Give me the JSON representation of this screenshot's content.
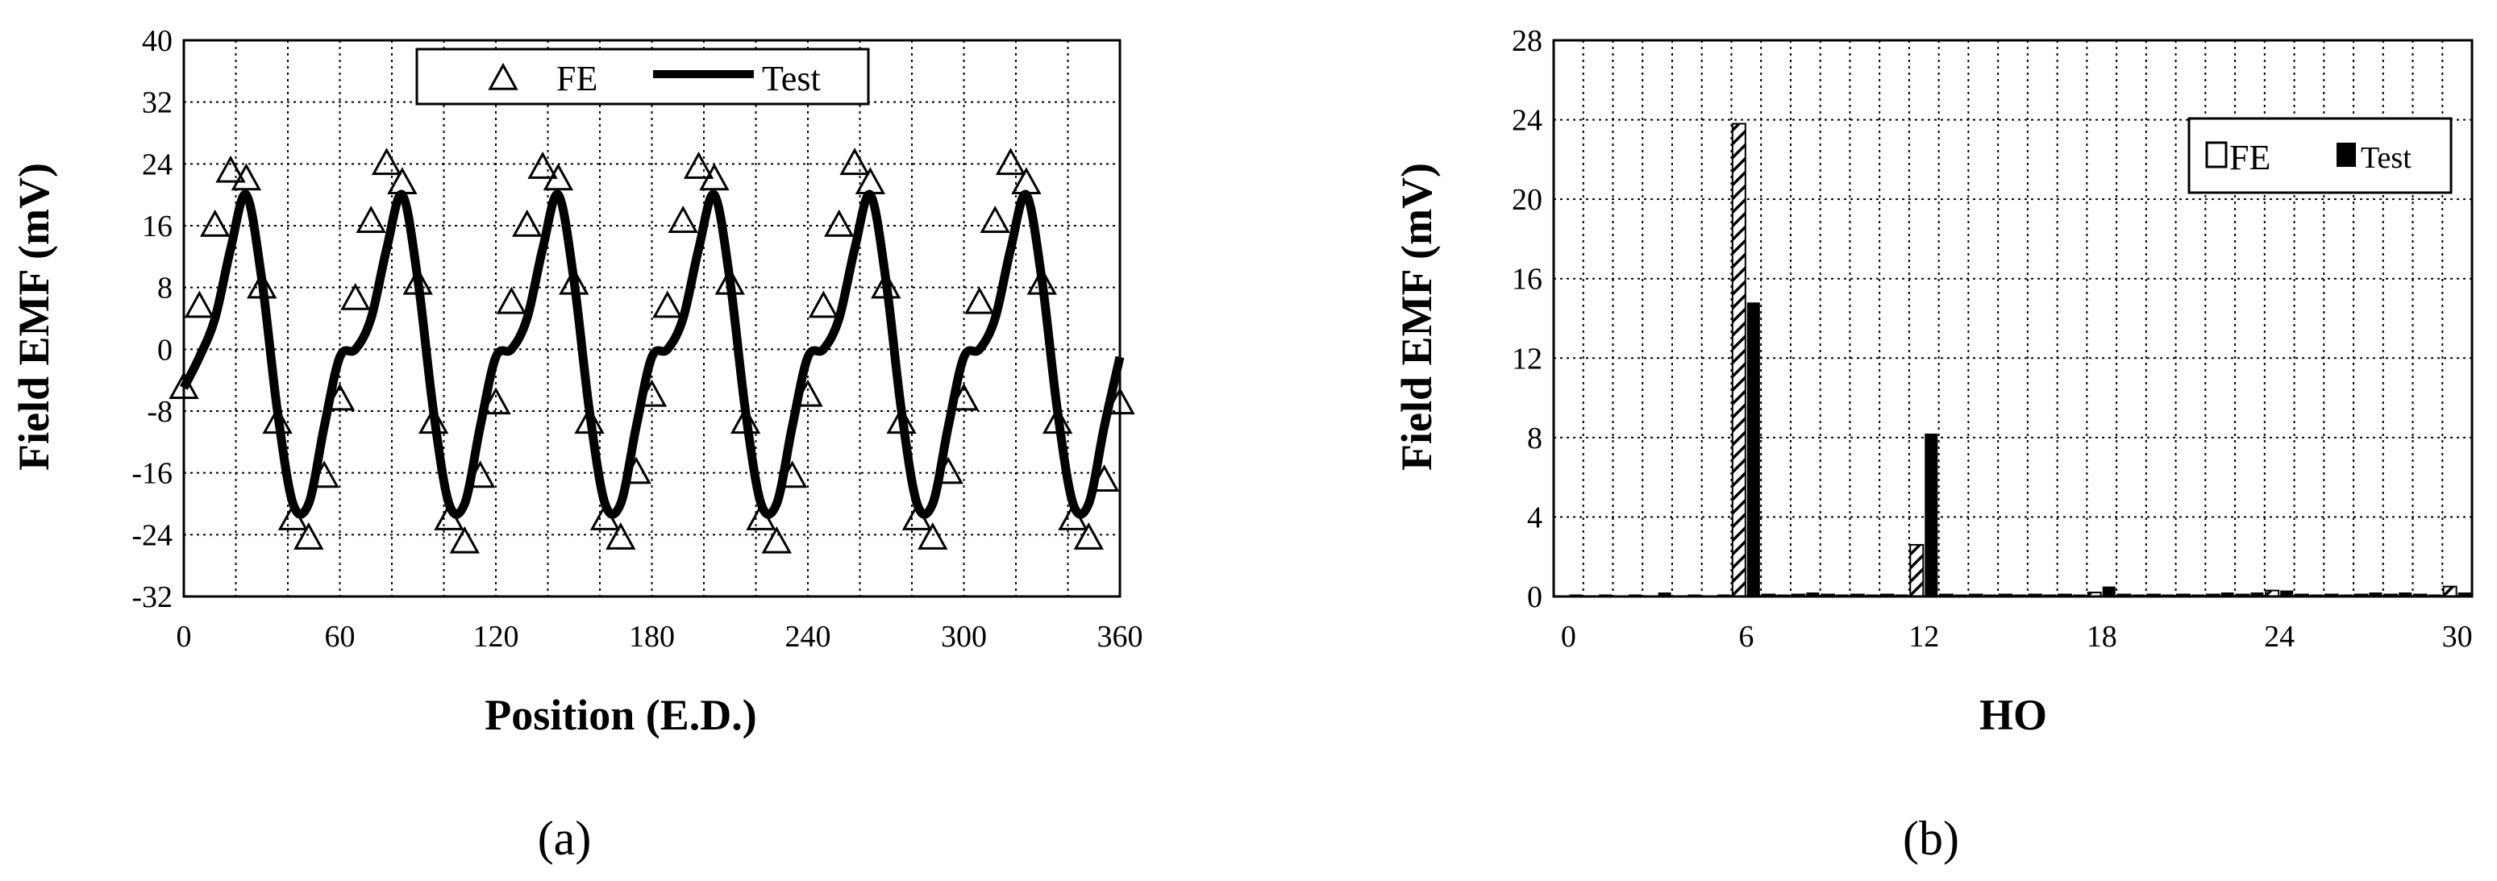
{
  "chart_data": [
    {
      "type": "line",
      "panel_label": "(a)",
      "xlabel": "Position (E.D.)",
      "ylabel": "Field EMF (mV)",
      "xlim": [
        0,
        360
      ],
      "ylim": [
        -32,
        40
      ],
      "xticks": [
        0,
        60,
        120,
        180,
        240,
        300,
        360
      ],
      "yticks": [
        -32,
        -24,
        -16,
        -8,
        0,
        8,
        16,
        24,
        32,
        40
      ],
      "grid": true,
      "legend_position": "top",
      "series": [
        {
          "name": "FE",
          "style": "triangle-markers",
          "x": [
            0,
            6,
            12,
            18,
            24,
            30,
            36,
            42,
            48,
            54,
            60,
            66,
            72,
            78,
            84,
            90,
            96,
            102,
            108,
            114,
            120,
            126,
            132,
            138,
            144,
            150,
            156,
            162,
            168,
            174,
            180,
            186,
            192,
            198,
            204,
            210,
            216,
            222,
            228,
            234,
            240,
            246,
            252,
            258,
            264,
            270,
            276,
            282,
            288,
            294,
            300,
            306,
            312,
            318,
            324,
            330,
            336,
            342,
            348,
            354,
            360
          ],
          "y": [
            -5,
            5.5,
            16,
            23,
            22,
            8,
            -9.5,
            -22,
            -24.5,
            -16.5,
            -6.5,
            6.5,
            16.5,
            24,
            21.5,
            8.5,
            -9.5,
            -22,
            -25,
            -16.5,
            -7,
            6,
            16,
            23.5,
            22,
            8.5,
            -9.5,
            -22,
            -24.5,
            -16,
            -6,
            5.5,
            16.5,
            23.5,
            22,
            8.5,
            -9.5,
            -22,
            -25,
            -16.5,
            -6,
            5.5,
            16,
            24,
            21.5,
            8,
            -9.5,
            -22,
            -24.5,
            -16,
            -6.5,
            6,
            16.5,
            24,
            21.5,
            8.5,
            -9.5,
            -22,
            -24.5,
            -17,
            -7
          ]
        },
        {
          "name": "Test",
          "style": "solid-line",
          "x": [
            0,
            6,
            12,
            18,
            24,
            30,
            36,
            42,
            48,
            54,
            60,
            66,
            72,
            78,
            84,
            90,
            96,
            102,
            108,
            114,
            120,
            126,
            132,
            138,
            144,
            150,
            156,
            162,
            168,
            174,
            180,
            186,
            192,
            198,
            204,
            210,
            216,
            222,
            228,
            234,
            240,
            246,
            252,
            258,
            264,
            270,
            276,
            282,
            288,
            294,
            300,
            306,
            312,
            318,
            324,
            330,
            336,
            342,
            348,
            354,
            360
          ],
          "y": [
            -5,
            -1,
            4,
            13,
            20,
            9,
            -8,
            -20,
            -20,
            -10,
            -1,
            0,
            4,
            13,
            20,
            9,
            -8,
            -20,
            -20,
            -10,
            -1,
            0,
            4,
            13,
            20,
            9,
            -8,
            -20,
            -20,
            -10,
            -1,
            0,
            4,
            13,
            20,
            9,
            -8,
            -20,
            -20,
            -10,
            -1,
            0,
            4,
            13,
            20,
            9,
            -8,
            -20,
            -20,
            -10,
            -1,
            0,
            4,
            13,
            20,
            9,
            -8,
            -20,
            -20,
            -10,
            -1
          ]
        }
      ]
    },
    {
      "type": "bar",
      "panel_label": "(b)",
      "xlabel": "HO",
      "ylabel": "Field EMF (mV)",
      "xlim": [
        0,
        30
      ],
      "ylim": [
        0,
        28
      ],
      "xticks": [
        0,
        6,
        12,
        18,
        24,
        30
      ],
      "yticks": [
        0,
        4,
        8,
        12,
        16,
        20,
        24,
        28
      ],
      "grid": true,
      "legend_position": "top-right",
      "categories": [
        0,
        1,
        2,
        3,
        4,
        5,
        6,
        7,
        8,
        9,
        10,
        11,
        12,
        13,
        14,
        15,
        16,
        17,
        18,
        19,
        20,
        21,
        22,
        23,
        24,
        25,
        26,
        27,
        28,
        29,
        30
      ],
      "series": [
        {
          "name": "FE",
          "style": "hatched",
          "values": [
            0,
            0,
            0,
            0,
            0,
            0,
            23.8,
            0.1,
            0.1,
            0.1,
            0.1,
            0.1,
            2.6,
            0.1,
            0.1,
            0.1,
            0.1,
            0.1,
            0.2,
            0.1,
            0.1,
            0.1,
            0.1,
            0.1,
            0.3,
            0.1,
            0.1,
            0.1,
            0.1,
            0.1,
            0.5
          ]
        },
        {
          "name": "Test",
          "style": "solid",
          "values": [
            0.1,
            0.1,
            0.1,
            0.2,
            0.1,
            0.1,
            14.8,
            0.1,
            0.2,
            0.1,
            0.1,
            0.1,
            8.2,
            0.1,
            0.1,
            0.1,
            0.1,
            0.1,
            0.5,
            0.1,
            0.1,
            0.1,
            0.2,
            0.2,
            0.3,
            0.1,
            0.1,
            0.2,
            0.2,
            0.1,
            0.2
          ]
        }
      ]
    }
  ]
}
